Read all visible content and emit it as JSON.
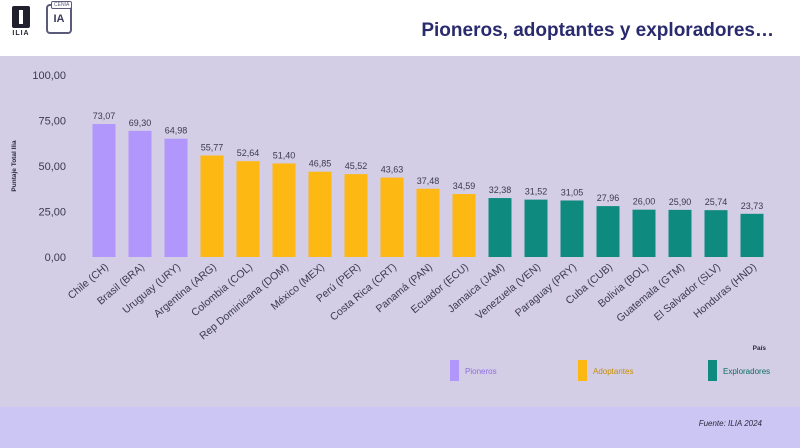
{
  "header": {
    "title": "Pioneros, adoptantes y exploradores…",
    "logo_text": "ILIA",
    "logo2_text": "IA",
    "logo2_badge": "CENIA"
  },
  "footer": {
    "source": "Fuente: ILIA 2024"
  },
  "chart_data": {
    "type": "bar",
    "title": "",
    "xlabel": "País",
    "ylabel": "Puntaje Total Ilia",
    "ylim": [
      0,
      100
    ],
    "yticks": [
      "0,00",
      "25,00",
      "50,00",
      "75,00",
      "100,00"
    ],
    "ytick_values": [
      0,
      25,
      50,
      75,
      100
    ],
    "grid": false,
    "legend_position": "bottom",
    "categories": [
      "Chile (CH)",
      "Brasil (BRA)",
      "Uruguay (URY)",
      "Argentina (ARG)",
      "Colombia (COL)",
      "Rep Dominicana (DOM)",
      "México (MEX)",
      "Perú (PER)",
      "Costa Rica (CRT)",
      "Panamá (PAN)",
      "Ecuador (ECU)",
      "Jamaica (JAM)",
      "Venezuela (VEN)",
      "Paraguay (PRY)",
      "Cuba (CUB)",
      "Bolivia (BOL)",
      "Guatemala (GTM)",
      "El Salvador (SLV)",
      "Honduras (HND)"
    ],
    "values": [
      73.07,
      69.3,
      64.98,
      55.77,
      52.64,
      51.4,
      46.85,
      45.52,
      43.63,
      37.48,
      34.59,
      32.38,
      31.52,
      31.05,
      27.96,
      26.0,
      25.9,
      25.74,
      23.73
    ],
    "value_labels": [
      "73,07",
      "69,30",
      "64,98",
      "55,77",
      "52,64",
      "51,40",
      "46,85",
      "45,52",
      "43,63",
      "37,48",
      "34,59",
      "32,38",
      "31,52",
      "31,05",
      "27,96",
      "26,00",
      "25,90",
      "25,74",
      "23,73"
    ],
    "groups": [
      "Pioneros",
      "Pioneros",
      "Pioneros",
      "Adoptantes",
      "Adoptantes",
      "Adoptantes",
      "Adoptantes",
      "Adoptantes",
      "Adoptantes",
      "Adoptantes",
      "Adoptantes",
      "Exploradores",
      "Exploradores",
      "Exploradores",
      "Exploradores",
      "Exploradores",
      "Exploradores",
      "Exploradores",
      "Exploradores"
    ],
    "legend": [
      {
        "name": "Pioneros",
        "color": "#b197fc"
      },
      {
        "name": "Adoptantes",
        "color": "#fdb813"
      },
      {
        "name": "Exploradores",
        "color": "#0e8a7e"
      }
    ]
  }
}
